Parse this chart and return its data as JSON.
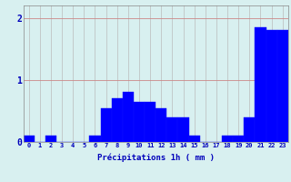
{
  "hours": [
    0,
    1,
    2,
    3,
    4,
    5,
    6,
    7,
    8,
    9,
    10,
    11,
    12,
    13,
    14,
    15,
    16,
    17,
    18,
    19,
    20,
    21,
    22,
    23
  ],
  "values": [
    0.1,
    0.0,
    0.1,
    0.0,
    0.0,
    0.0,
    0.1,
    0.55,
    0.7,
    0.8,
    0.65,
    0.65,
    0.55,
    0.4,
    0.4,
    0.1,
    0.0,
    0.0,
    0.1,
    0.1,
    0.4,
    1.85,
    1.8,
    1.8
  ],
  "bar_color": "#0000FF",
  "bar_edge_color": "#1010FF",
  "background_color": "#D8F0F0",
  "grid_color": "#BBBBBB",
  "text_color": "#0000BB",
  "xlabel": "Précipitations 1h ( mm )",
  "ylim": [
    0,
    2.2
  ],
  "yticks": [
    0,
    1,
    2
  ],
  "xlim": [
    -0.5,
    23.5
  ]
}
